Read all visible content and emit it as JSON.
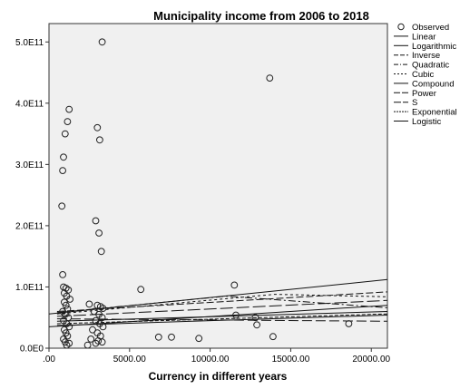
{
  "chart_data": {
    "type": "scatter",
    "title": "Municipality income from 2006 to 2018",
    "xlabel": "Currency in different years",
    "ylabel": "",
    "xlim": [
      0,
      21000
    ],
    "ylim": [
      0,
      530000000000
    ],
    "x_ticks": [
      {
        "value": 0,
        "label": ".00"
      },
      {
        "value": 5000,
        "label": "5000.00"
      },
      {
        "value": 10000,
        "label": "10000.00"
      },
      {
        "value": 15000,
        "label": "15000.00"
      },
      {
        "value": 20000,
        "label": "20000.00"
      }
    ],
    "y_ticks": [
      {
        "value": 0,
        "label": "0.0E0"
      },
      {
        "value": 100000000000,
        "label": "1.0E11"
      },
      {
        "value": 200000000000,
        "label": "2.0E11"
      },
      {
        "value": 300000000000,
        "label": "3.0E11"
      },
      {
        "value": 400000000000,
        "label": "4.0E11"
      },
      {
        "value": 500000000000,
        "label": "5.0E11"
      }
    ],
    "grid": false,
    "legend_position": "right",
    "observed": {
      "name": "Observed",
      "points": [
        [
          3300,
          500000000000
        ],
        [
          13700,
          441000000000
        ],
        [
          1250,
          390000000000
        ],
        [
          1150,
          370000000000
        ],
        [
          1000,
          350000000000
        ],
        [
          3000,
          360000000000
        ],
        [
          3150,
          340000000000
        ],
        [
          900,
          312000000000
        ],
        [
          850,
          290000000000
        ],
        [
          800,
          232000000000
        ],
        [
          2900,
          208000000000
        ],
        [
          3100,
          188000000000
        ],
        [
          3250,
          158000000000
        ],
        [
          850,
          120000000000
        ],
        [
          900,
          100000000000
        ],
        [
          1050,
          98000000000
        ],
        [
          1200,
          95000000000
        ],
        [
          950,
          90000000000
        ],
        [
          1100,
          85000000000
        ],
        [
          1300,
          80000000000
        ],
        [
          950,
          75000000000
        ],
        [
          1050,
          70000000000
        ],
        [
          1150,
          64000000000
        ],
        [
          850,
          60000000000
        ],
        [
          1000,
          55000000000
        ],
        [
          1200,
          50000000000
        ],
        [
          900,
          45000000000
        ],
        [
          1100,
          40000000000
        ],
        [
          1250,
          35000000000
        ],
        [
          950,
          30000000000
        ],
        [
          1050,
          25000000000
        ],
        [
          1150,
          20000000000
        ],
        [
          900,
          15000000000
        ],
        [
          1000,
          10000000000
        ],
        [
          1250,
          8000000000
        ],
        [
          1100,
          5000000000
        ],
        [
          2500,
          72000000000
        ],
        [
          3000,
          70000000000
        ],
        [
          3200,
          68000000000
        ],
        [
          3350,
          65000000000
        ],
        [
          2800,
          60000000000
        ],
        [
          3100,
          55000000000
        ],
        [
          3300,
          50000000000
        ],
        [
          2900,
          45000000000
        ],
        [
          3150,
          40000000000
        ],
        [
          3350,
          35000000000
        ],
        [
          2700,
          30000000000
        ],
        [
          3000,
          25000000000
        ],
        [
          3200,
          20000000000
        ],
        [
          2600,
          15000000000
        ],
        [
          3050,
          12000000000
        ],
        [
          3300,
          10000000000
        ],
        [
          2900,
          8000000000
        ],
        [
          2400,
          5000000000
        ],
        [
          5700,
          96000000000
        ],
        [
          11500,
          103000000000
        ],
        [
          11600,
          54000000000
        ],
        [
          12800,
          50000000000
        ],
        [
          12900,
          38000000000
        ],
        [
          6800,
          18000000000
        ],
        [
          7600,
          18000000000
        ],
        [
          9300,
          16000000000
        ],
        [
          13900,
          19000000000
        ],
        [
          18600,
          40000000000
        ]
      ]
    },
    "fit_lines": [
      {
        "name": "Linear",
        "dash": "",
        "segments": [
          [
            [
              0,
              56000000000
            ],
            [
              21000,
              112000000000
            ]
          ]
        ]
      },
      {
        "name": "Logarithmic",
        "dash": "",
        "segments": [
          [
            [
              0,
              35000000000
            ],
            [
              21000,
              70000000000
            ]
          ]
        ]
      },
      {
        "name": "Inverse",
        "dash": "8 3",
        "segments": [
          [
            [
              500,
              60000000000
            ],
            [
              21000,
              92000000000
            ]
          ]
        ]
      },
      {
        "name": "Quadratic",
        "dash": "8 3 2 3",
        "segments": [
          [
            [
              500,
              58000000000
            ],
            [
              11000,
              85000000000
            ],
            [
              21000,
              66000000000
            ]
          ]
        ]
      },
      {
        "name": "Cubic",
        "dash": "3 3",
        "segments": [
          [
            [
              500,
              56000000000
            ],
            [
              14000,
              88000000000
            ],
            [
              21000,
              84000000000
            ]
          ]
        ]
      },
      {
        "name": "Compound",
        "dash": "",
        "segments": [
          [
            [
              500,
              37000000000
            ],
            [
              21000,
              54000000000
            ]
          ]
        ]
      },
      {
        "name": "Power",
        "dash": "11 4",
        "segments": [
          [
            [
              500,
              48000000000
            ],
            [
              21000,
              44000000000
            ]
          ]
        ]
      },
      {
        "name": "S",
        "dash": "14 4",
        "segments": [
          [
            [
              500,
              52000000000
            ],
            [
              21000,
              78000000000
            ]
          ]
        ]
      },
      {
        "name": "Exponential",
        "dash": "4 2",
        "segments": [
          [
            [
              500,
              40000000000
            ],
            [
              21000,
              56000000000
            ]
          ]
        ]
      },
      {
        "name": "Logistic",
        "dash": "",
        "segments": [
          [
            [
              500,
              44000000000
            ],
            [
              21000,
              60000000000
            ]
          ]
        ]
      }
    ]
  }
}
